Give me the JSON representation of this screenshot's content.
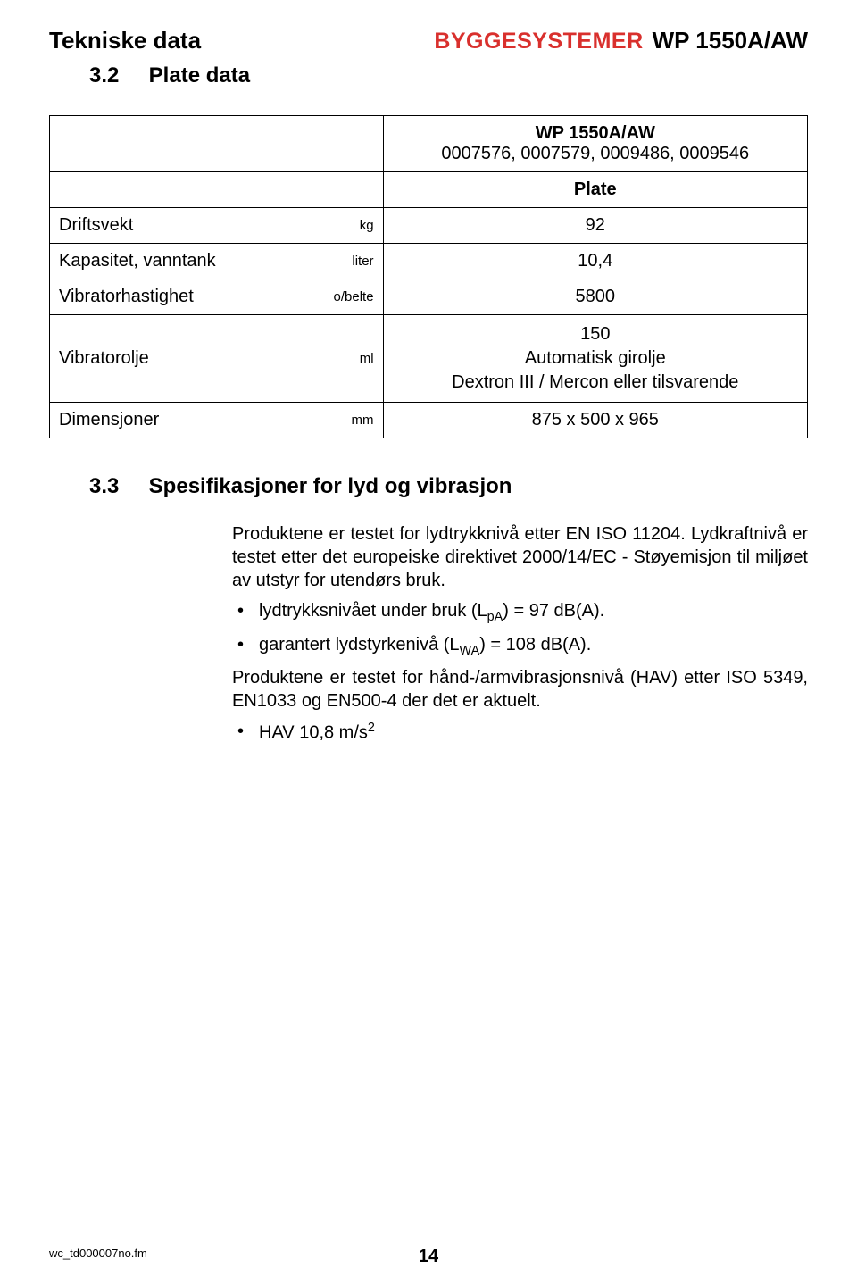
{
  "header": {
    "left": "Tekniske data",
    "brand": "BYGGESYSTEMER",
    "model": "WP 1550A/AW"
  },
  "section32": {
    "num": "3.2",
    "title": "Plate data"
  },
  "table": {
    "top_header_line1": "WP 1550A/AW",
    "top_header_line2": "0007576, 0007579, 0009486, 0009546",
    "plate_label": "Plate",
    "rows": [
      {
        "label": "Driftsvekt",
        "unit": "kg",
        "value": "92"
      },
      {
        "label": "Kapasitet, vanntank",
        "unit": "liter",
        "value": "10,4"
      },
      {
        "label": "Vibratorhastighet",
        "unit": "o/belte",
        "value": "5800"
      },
      {
        "label": "Vibratorolje",
        "unit": "ml",
        "value": "150\nAutomatisk girolje\nDextron III / Mercon eller tilsvarende"
      },
      {
        "label": "Dimensjoner",
        "unit": "mm",
        "value": "875 x 500 x 965"
      }
    ]
  },
  "section33": {
    "num": "3.3",
    "title": "Spesifikasjoner for lyd og vibrasjon"
  },
  "body": {
    "para1": "Produktene er testet for lydtrykknivå etter EN ISO 11204. Lydkraftnivå er testet etter det europeiske direktivet 2000/14/EC - Støyemisjon til miljøet av utstyr for utendørs bruk.",
    "bullets": [
      {
        "pre": "lydtrykksnivået under bruk (L",
        "sub": "pA",
        "post": ") = 97 dB(A)."
      },
      {
        "pre": "garantert lydstyrkenivå (L",
        "sub": "WA",
        "post": ") = 108 dB(A)."
      }
    ],
    "para2": "Produktene er testet for hånd-/armvibrasjonsnivå (HAV) etter ISO 5349, EN1033 og EN500-4 der det er aktuelt.",
    "bullet_hav_pre": "HAV 10,8 m/s",
    "bullet_hav_sup": "2"
  },
  "footer": {
    "file": "wc_td000007no.fm",
    "page": "14"
  }
}
